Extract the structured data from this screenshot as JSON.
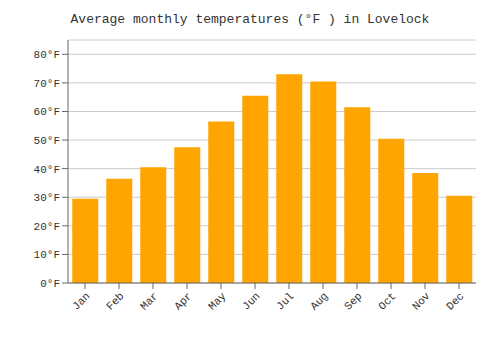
{
  "chart_data": {
    "type": "bar",
    "title": "Average monthly temperatures (°F ) in Lovelock",
    "categories": [
      "Jan",
      "Feb",
      "Mar",
      "Apr",
      "May",
      "Jun",
      "Jul",
      "Aug",
      "Sep",
      "Oct",
      "Nov",
      "Dec"
    ],
    "values": [
      29.5,
      36.5,
      40.5,
      47.5,
      56.5,
      65.5,
      73.0,
      70.5,
      61.5,
      50.5,
      38.5,
      30.5
    ],
    "color": "#FFA500",
    "ylim": [
      0,
      85
    ],
    "yticks": [
      {
        "value": 0,
        "label": "0°F"
      },
      {
        "value": 10,
        "label": "10°F"
      },
      {
        "value": 20,
        "label": "20°F"
      },
      {
        "value": 30,
        "label": "30°F"
      },
      {
        "value": 40,
        "label": "40°F"
      },
      {
        "value": 50,
        "label": "50°F"
      },
      {
        "value": 60,
        "label": "60°F"
      },
      {
        "value": 70,
        "label": "70°F"
      },
      {
        "value": 80,
        "label": "80°F"
      }
    ],
    "grid": true
  }
}
